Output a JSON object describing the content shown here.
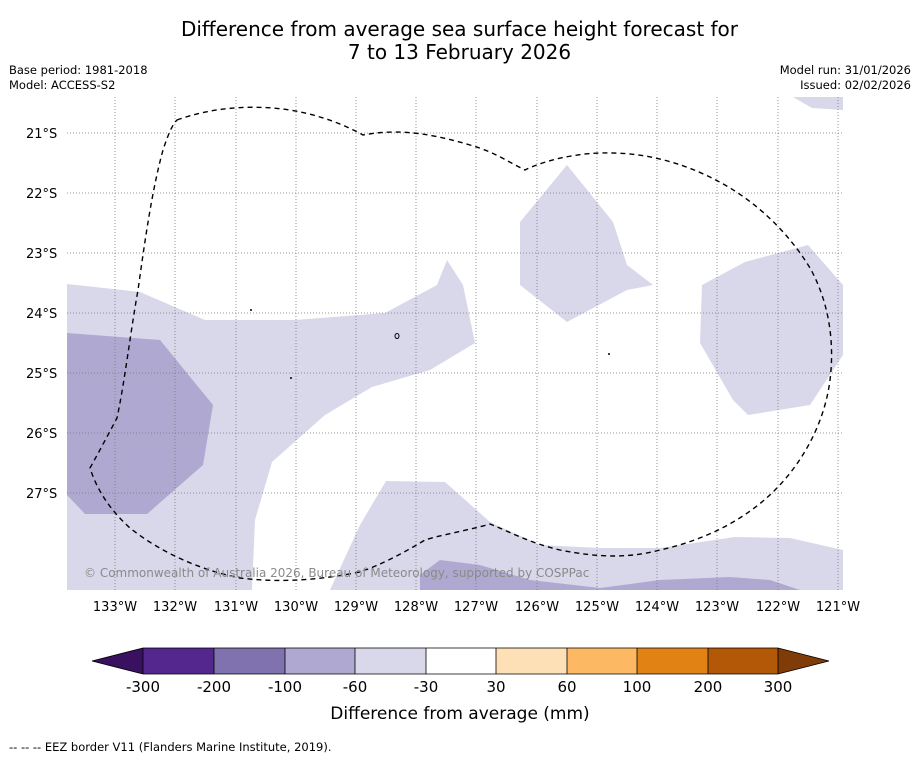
{
  "title": {
    "line1": "Difference from average sea surface height forecast for",
    "line2": "7 to 13 February 2026"
  },
  "meta": {
    "base_period": "Base period: 1981-2018",
    "model": "Model: ACCESS-S2",
    "model_run": "Model run: 31/01/2026",
    "issued": "Issued: 02/02/2026"
  },
  "map": {
    "lat_labels": [
      "21°S",
      "22°S",
      "23°S",
      "24°S",
      "25°S",
      "26°S",
      "27°S"
    ],
    "lon_labels": [
      "133°W",
      "132°W",
      "131°W",
      "130°W",
      "129°W",
      "128°W",
      "127°W",
      "126°W",
      "125°W",
      "124°W",
      "123°W",
      "122°W",
      "121°W"
    ],
    "copyright": "© Commonwealth of Australia 2026, Bureau of Meteorology, supported by COSPPac",
    "colors": {
      "level_30_60_neg": "#d8d8ea",
      "level_60_100_neg": "#afa8d0",
      "eez_line": "#000000"
    }
  },
  "colorbar": {
    "title": "Difference from average (mm)",
    "ticks": [
      "-300",
      "-200",
      "-100",
      "-60",
      "-30",
      "30",
      "60",
      "100",
      "200",
      "300"
    ],
    "segment_colors": [
      "#3a1060",
      "#54278f",
      "#7f72ae",
      "#afa8d0",
      "#d8d8ea",
      "#ffffff",
      "#fee0b6",
      "#fdb863",
      "#e08214",
      "#b35806",
      "#7f3b08"
    ]
  },
  "footnote": "--  --  -- EEZ border V11 (Flanders Marine Institute, 2019)."
}
